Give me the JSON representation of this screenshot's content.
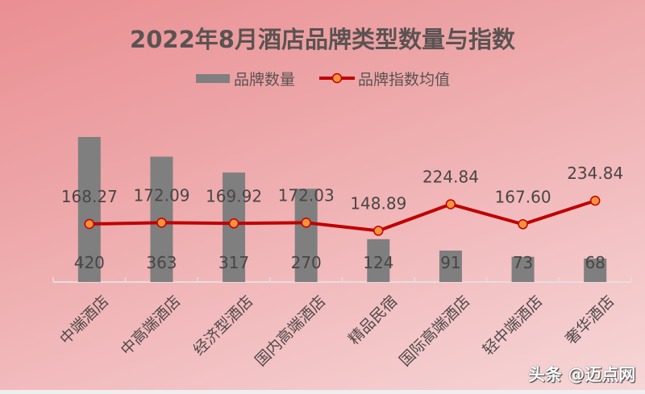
{
  "title": "2022年8月酒店品牌类型数量与指数",
  "legend": {
    "bar_label": "品牌数量",
    "line_label": "品牌指数均值"
  },
  "watermark": "头条 @迈点网",
  "colors": {
    "bar": "#7f7f7f",
    "line": "#c00000",
    "marker_fill": "#f7913a",
    "marker_stroke": "#c00000",
    "text": "#4f4a4a"
  },
  "chart_data": {
    "type": "bar",
    "title": "2022年8月酒店品牌类型数量与指数",
    "xlabel": "",
    "ylabel": "",
    "categories": [
      "中端酒店",
      "中高端酒店",
      "经济型酒店",
      "国内高端酒店",
      "精品民宿",
      "国际高端酒店",
      "轻中端酒店",
      "奢华酒店"
    ],
    "series": [
      {
        "name": "品牌数量",
        "type": "bar",
        "values": [
          420,
          363,
          317,
          270,
          124,
          91,
          73,
          68
        ]
      },
      {
        "name": "品牌指数均值",
        "type": "line",
        "values": [
          168.27,
          172.09,
          169.92,
          172.03,
          148.89,
          224.84,
          167.6,
          234.84
        ]
      }
    ],
    "value_labels_bar": [
      "420",
      "363",
      "317",
      "270",
      "124",
      "91",
      "73",
      "68"
    ],
    "value_labels_line": [
      "168.27",
      "172.09",
      "169.92",
      "172.03",
      "148.89",
      "224.84",
      "167.60",
      "234.84"
    ],
    "grid": false,
    "legend_position": "top"
  }
}
